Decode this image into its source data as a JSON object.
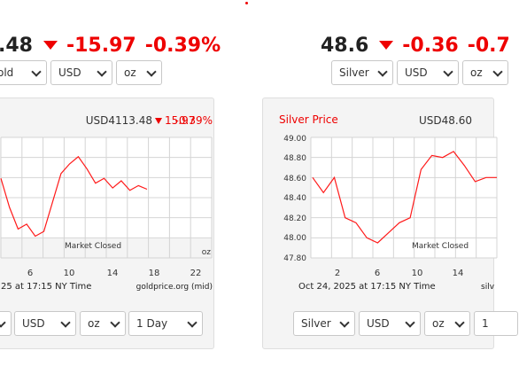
{
  "gold": {
    "headline": {
      "price": ".48",
      "change": "-15.97",
      "percent": "-0.39%"
    },
    "top_selects": {
      "metal": "old",
      "currency": "USD",
      "unit": "oz"
    },
    "chart": {
      "price_label": "USD4113.48",
      "change": "15.97",
      "percent": "-0.39%",
      "x_ticks": [
        "6",
        "10",
        "14",
        "18",
        "22"
      ],
      "status": "Market Closed",
      "unit": "oz",
      "timestamp": "25 at 17:15 NY Time",
      "source": "goldprice.org (mid)"
    },
    "bottom_selects": {
      "currency": "USD",
      "unit": "oz",
      "range": "1 Day"
    }
  },
  "silver": {
    "headline": {
      "price": "48.6",
      "change": "-0.36",
      "percent": "-0.7"
    },
    "top_selects": {
      "metal": "Silver",
      "currency": "USD",
      "unit": "oz"
    },
    "chart": {
      "title": "Silver Price",
      "price_label": "USD48.60",
      "y_ticks": [
        "49.00",
        "48.80",
        "48.60",
        "48.40",
        "48.20",
        "48.00",
        "47.80"
      ],
      "x_ticks": [
        "2",
        "6",
        "10",
        "14"
      ],
      "status": "Market Closed",
      "timestamp": "Oct 24, 2025 at 17:15 NY Time",
      "source": "silv"
    },
    "bottom_selects": {
      "metal": "Silver",
      "currency": "USD",
      "unit": "oz",
      "range": "1"
    }
  },
  "colors": {
    "accent": "#e00000",
    "line": "#ff1a1a",
    "grid": "#d4d4d4"
  },
  "chart_data": [
    {
      "type": "line",
      "title": "",
      "x": [
        0,
        1,
        2,
        3,
        4,
        5,
        6,
        7,
        8,
        9,
        10,
        11,
        12,
        13,
        14,
        15,
        16,
        17
      ],
      "values": [
        4118,
        4106,
        4097,
        4099,
        4094,
        4096,
        4108,
        4120,
        4124,
        4127,
        4122,
        4116,
        4118,
        4114,
        4117,
        4113,
        4115,
        4113.48
      ]
    },
    {
      "type": "line",
      "title": "Silver Price",
      "x": [
        0,
        1,
        2,
        3,
        4,
        5,
        6,
        7,
        8,
        9,
        10,
        11,
        12,
        13,
        14,
        15,
        16,
        17
      ],
      "ylim": [
        47.8,
        49.0
      ],
      "values": [
        48.6,
        48.45,
        48.6,
        48.2,
        48.15,
        48.0,
        47.95,
        48.05,
        48.15,
        48.2,
        48.68,
        48.82,
        48.8,
        48.86,
        48.72,
        48.56,
        48.6,
        48.6
      ]
    }
  ]
}
